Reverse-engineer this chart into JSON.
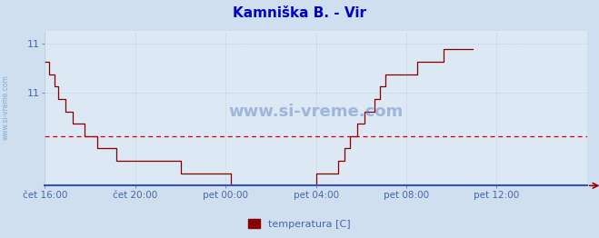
{
  "title": "Kamniška B. - Vir",
  "title_color": "#0000cc",
  "title_fontsize": 11,
  "bg_color": "#d0dff0",
  "plot_bg_color": "#dce8f4",
  "xlabel_color": "#4466aa",
  "ylabel_color": "#4466aa",
  "grid_color": "#b8cce0",
  "line_color": "#880000",
  "avg_line_color": "#cc0000",
  "avg_line_y": 10.5,
  "x_tick_labels": [
    "čet 16:00",
    "čet 20:00",
    "pet 00:00",
    "pet 04:00",
    "pet 08:00",
    "pet 12:00"
  ],
  "x_tick_positions": [
    0,
    48,
    96,
    144,
    192,
    240
  ],
  "xmin": 0,
  "xmax": 288,
  "ymin": 10.1,
  "ymax": 11.35,
  "y_tick_vals": [
    11.25,
    10.85
  ],
  "y_tick_labels": [
    "11",
    "11"
  ],
  "legend_label": "temperatura [C]",
  "legend_color": "#880000",
  "sidebar_text": "www.si-vreme.com",
  "watermark": "www.si-vreme.com",
  "temp_data": [
    11.1,
    11.1,
    11.0,
    11.0,
    11.0,
    10.9,
    10.9,
    10.8,
    10.8,
    10.8,
    10.8,
    10.7,
    10.7,
    10.7,
    10.7,
    10.6,
    10.6,
    10.6,
    10.6,
    10.6,
    10.6,
    10.5,
    10.5,
    10.5,
    10.5,
    10.5,
    10.5,
    10.5,
    10.4,
    10.4,
    10.4,
    10.4,
    10.4,
    10.4,
    10.4,
    10.4,
    10.4,
    10.4,
    10.3,
    10.3,
    10.3,
    10.3,
    10.3,
    10.3,
    10.3,
    10.3,
    10.3,
    10.3,
    10.3,
    10.3,
    10.3,
    10.3,
    10.3,
    10.3,
    10.3,
    10.3,
    10.3,
    10.3,
    10.3,
    10.3,
    10.3,
    10.3,
    10.3,
    10.3,
    10.3,
    10.3,
    10.3,
    10.3,
    10.3,
    10.3,
    10.3,
    10.3,
    10.2,
    10.2,
    10.2,
    10.2,
    10.2,
    10.2,
    10.2,
    10.2,
    10.2,
    10.2,
    10.2,
    10.2,
    10.2,
    10.2,
    10.2,
    10.2,
    10.2,
    10.2,
    10.2,
    10.2,
    10.2,
    10.2,
    10.2,
    10.2,
    10.2,
    10.2,
    10.2,
    10.1,
    10.1,
    10.1,
    10.1,
    10.1,
    10.1,
    10.1,
    10.1,
    10.1,
    10.1,
    10.1,
    10.1,
    10.1,
    10.1,
    10.1,
    10.1,
    10.1,
    10.1,
    10.1,
    10.1,
    10.1,
    10.1,
    10.1,
    10.1,
    10.1,
    10.1,
    10.1,
    10.1,
    10.1,
    10.1,
    10.1,
    10.1,
    10.1,
    10.1,
    10.1,
    10.1,
    10.1,
    10.1,
    10.1,
    10.1,
    10.1,
    10.1,
    10.1,
    10.1,
    10.1,
    10.2,
    10.2,
    10.2,
    10.2,
    10.2,
    10.2,
    10.2,
    10.2,
    10.2,
    10.2,
    10.2,
    10.2,
    10.3,
    10.3,
    10.3,
    10.4,
    10.4,
    10.4,
    10.5,
    10.5,
    10.5,
    10.5,
    10.6,
    10.6,
    10.6,
    10.6,
    10.7,
    10.7,
    10.7,
    10.7,
    10.7,
    10.8,
    10.8,
    10.8,
    10.9,
    10.9,
    10.9,
    11.0,
    11.0,
    11.0,
    11.0,
    11.0,
    11.0,
    11.0,
    11.0,
    11.0,
    11.0,
    11.0,
    11.0,
    11.0,
    11.0,
    11.0,
    11.0,
    11.0,
    11.1,
    11.1,
    11.1,
    11.1,
    11.1,
    11.1,
    11.1,
    11.1,
    11.1,
    11.1,
    11.1,
    11.1,
    11.1,
    11.1,
    11.2,
    11.2,
    11.2,
    11.2,
    11.2,
    11.2,
    11.2,
    11.2,
    11.2,
    11.2,
    11.2,
    11.2,
    11.2,
    11.2,
    11.2,
    11.2
  ]
}
